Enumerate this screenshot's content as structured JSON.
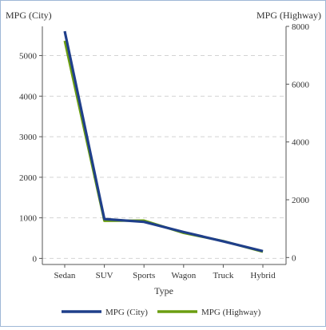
{
  "chart_data": {
    "type": "line",
    "xlabel": "Type",
    "y_left_label": "MPG (City)",
    "y_right_label": "MPG (Highway)",
    "categories": [
      "Sedan",
      "SUV",
      "Sports",
      "Wagon",
      "Truck",
      "Hybrid"
    ],
    "y_left_ticks": [
      "0",
      "1000",
      "2000",
      "3000",
      "4000",
      "5000"
    ],
    "y_right_ticks": [
      "0",
      "2000",
      "4000",
      "6000",
      "8000"
    ],
    "y_left_lim": [
      -150,
      5720
    ],
    "y_right_lim": [
      -240,
      8000
    ],
    "grid": true,
    "legend_position": "bottom",
    "series": [
      {
        "name": "MPG (City)",
        "axis": "left",
        "color": "#1f3f8a",
        "values": [
          5600,
          970,
          900,
          650,
          420,
          180
        ]
      },
      {
        "name": "MPG (Highway)",
        "axis": "right",
        "color": "#6b9e10",
        "values": [
          7500,
          1270,
          1280,
          850,
          570,
          200
        ]
      }
    ]
  }
}
